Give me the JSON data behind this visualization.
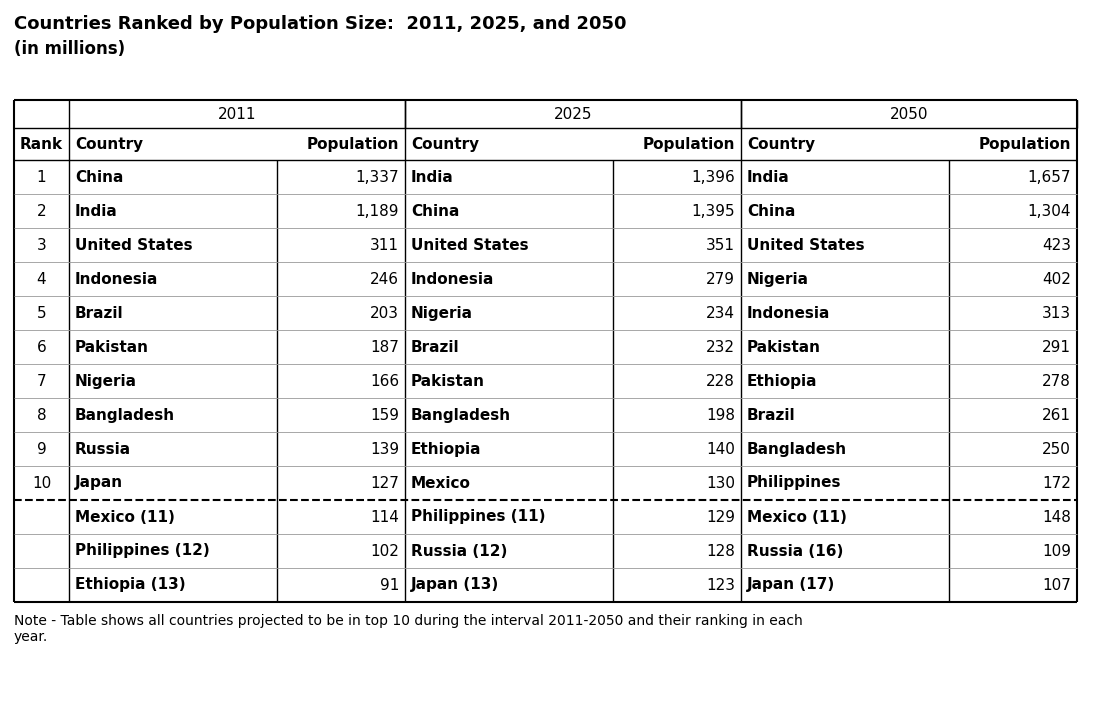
{
  "title_line1": "Countries Ranked by Population Size:  2011, 2025, and 2050",
  "title_line2": "(in millions)",
  "note": "Note - Table shows all countries projected to be in top 10 during the interval 2011-2050 and their ranking in each\nyear.",
  "year_headers": [
    "2011",
    "2025",
    "2050"
  ],
  "col_headers": [
    "Rank",
    "Country",
    "Population",
    "Country",
    "Population",
    "Country",
    "Population"
  ],
  "rows": [
    [
      "1",
      "China",
      "1,337",
      "India",
      "1,396",
      "India",
      "1,657"
    ],
    [
      "2",
      "India",
      "1,189",
      "China",
      "1,395",
      "China",
      "1,304"
    ],
    [
      "3",
      "United States",
      "311",
      "United States",
      "351",
      "United States",
      "423"
    ],
    [
      "4",
      "Indonesia",
      "246",
      "Indonesia",
      "279",
      "Nigeria",
      "402"
    ],
    [
      "5",
      "Brazil",
      "203",
      "Nigeria",
      "234",
      "Indonesia",
      "313"
    ],
    [
      "6",
      "Pakistan",
      "187",
      "Brazil",
      "232",
      "Pakistan",
      "291"
    ],
    [
      "7",
      "Nigeria",
      "166",
      "Pakistan",
      "228",
      "Ethiopia",
      "278"
    ],
    [
      "8",
      "Bangladesh",
      "159",
      "Bangladesh",
      "198",
      "Brazil",
      "261"
    ],
    [
      "9",
      "Russia",
      "139",
      "Ethiopia",
      "140",
      "Bangladesh",
      "250"
    ],
    [
      "10",
      "Japan",
      "127",
      "Mexico",
      "130",
      "Philippines",
      "172"
    ]
  ],
  "extra_rows": [
    [
      "",
      "Mexico (11)",
      "114",
      "Philippines (11)",
      "129",
      "Mexico (11)",
      "148"
    ],
    [
      "",
      "Philippines (12)",
      "102",
      "Russia (12)",
      "128",
      "Russia (16)",
      "109"
    ],
    [
      "",
      "Ethiopia (13)",
      "91",
      "Japan (13)",
      "123",
      "Japan (17)",
      "107"
    ]
  ],
  "bold_countries_2011": [
    "China",
    "India",
    "United States",
    "Indonesia",
    "Brazil",
    "Pakistan",
    "Nigeria",
    "Bangladesh",
    "Russia",
    "Japan"
  ],
  "bold_countries_2025": [
    "India",
    "China",
    "United States",
    "Indonesia",
    "Nigeria",
    "Brazil",
    "Pakistan",
    "Bangladesh",
    "Ethiopia",
    "Mexico"
  ],
  "bold_countries_2050": [
    "India",
    "China",
    "United States",
    "Nigeria",
    "Indonesia",
    "Pakistan",
    "Ethiopia",
    "Brazil",
    "Bangladesh",
    "Philippines"
  ],
  "bg_color": "#ffffff",
  "font_family": "Arial",
  "title_fontsize": 13,
  "body_fontsize": 11,
  "note_fontsize": 10
}
